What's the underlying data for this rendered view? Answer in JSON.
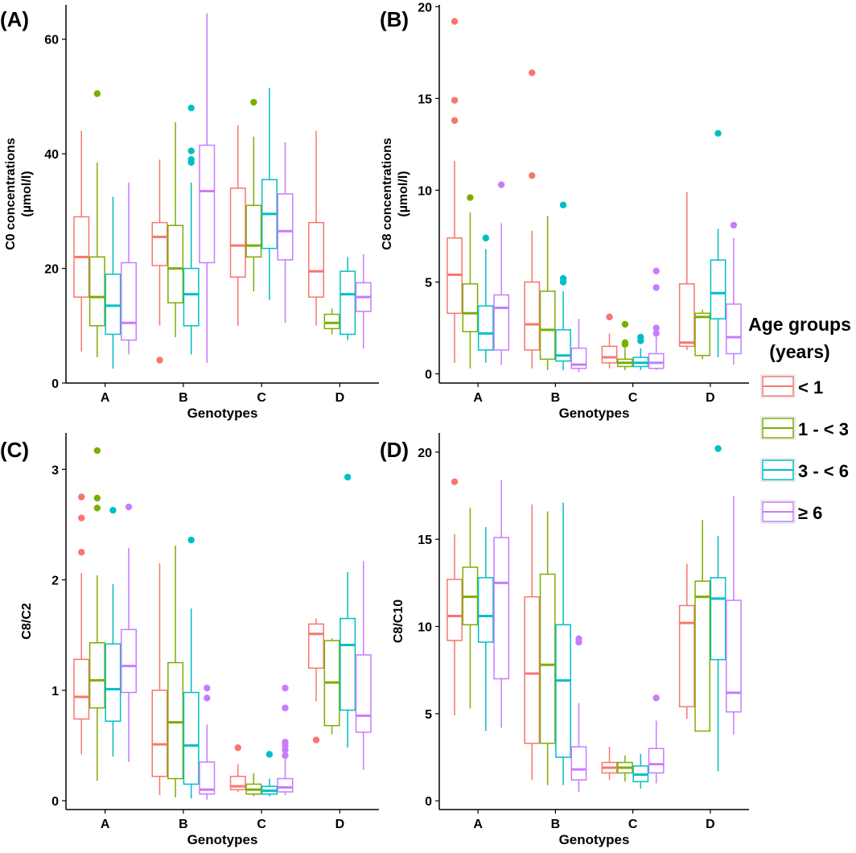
{
  "chart_data": [
    {
      "type": "boxplot",
      "panel_label": "(A)",
      "xlabel": "Genotypes",
      "ylabel_lines": [
        "C0 concentrations",
        "(µmol/l)"
      ],
      "categories": [
        "A",
        "B",
        "C",
        "D"
      ],
      "ylim": [
        0,
        66
      ],
      "yticks": [
        0,
        20,
        40,
        60
      ],
      "series": [
        {
          "name": "< 1",
          "boxes": [
            {
              "min": 5.5,
              "q1": 15,
              "median": 22,
              "q3": 29,
              "max": 44,
              "outliers": []
            },
            {
              "min": 10,
              "q1": 20.5,
              "median": 25.5,
              "q3": 28,
              "max": 39,
              "outliers": [
                4
              ]
            },
            {
              "min": 10,
              "q1": 18.5,
              "median": 24,
              "q3": 34,
              "max": 45,
              "outliers": []
            },
            {
              "min": 10,
              "q1": 15,
              "median": 19.5,
              "q3": 28,
              "max": 44,
              "outliers": []
            }
          ]
        },
        {
          "name": "1 - < 3",
          "boxes": [
            {
              "min": 4.5,
              "q1": 10,
              "median": 15,
              "q3": 22,
              "max": 38.5,
              "outliers": [
                50.5
              ]
            },
            {
              "min": 8,
              "q1": 14,
              "median": 20,
              "q3": 27.5,
              "max": 45.5,
              "outliers": []
            },
            {
              "min": 16,
              "q1": 22,
              "median": 24,
              "q3": 31,
              "max": 43,
              "outliers": [
                49
              ]
            },
            {
              "min": 8.5,
              "q1": 9.5,
              "median": 10.5,
              "q3": 12,
              "max": 13,
              "outliers": []
            }
          ]
        },
        {
          "name": "3 - < 6",
          "boxes": [
            {
              "min": 2.5,
              "q1": 8.5,
              "median": 13.5,
              "q3": 19,
              "max": 32.5,
              "outliers": []
            },
            {
              "min": 5,
              "q1": 10,
              "median": 15.5,
              "q3": 20,
              "max": 35,
              "outliers": [
                38.5,
                39,
                40.5,
                48
              ]
            },
            {
              "min": 14.5,
              "q1": 23.5,
              "median": 29.5,
              "q3": 35.5,
              "max": 51.5,
              "outliers": []
            },
            {
              "min": 7.5,
              "q1": 8.5,
              "median": 15.5,
              "q3": 19.5,
              "max": 22,
              "outliers": []
            }
          ]
        },
        {
          "name": "≥ 6",
          "boxes": [
            {
              "min": 5,
              "q1": 7.5,
              "median": 10.5,
              "q3": 21,
              "max": 35,
              "outliers": []
            },
            {
              "min": 3.5,
              "q1": 21,
              "median": 33.5,
              "q3": 41.5,
              "max": 64.5,
              "outliers": []
            },
            {
              "min": 10.5,
              "q1": 21.5,
              "median": 26.5,
              "q3": 33,
              "max": 42,
              "outliers": []
            },
            {
              "min": 6,
              "q1": 12.5,
              "median": 15,
              "q3": 17.5,
              "max": 22.5,
              "outliers": []
            }
          ]
        }
      ]
    },
    {
      "type": "boxplot",
      "panel_label": "(B)",
      "xlabel": "Genotypes",
      "ylabel_lines": [
        "C8 concentrations",
        "(µmol/l)"
      ],
      "categories": [
        "A",
        "B",
        "C",
        "D"
      ],
      "ylim": [
        -0.5,
        20.1
      ],
      "yticks": [
        0,
        5,
        10,
        15,
        20
      ],
      "series": [
        {
          "name": "< 1",
          "boxes": [
            {
              "min": 0.6,
              "q1": 3.3,
              "median": 5.4,
              "q3": 7.4,
              "max": 11.6,
              "outliers": [
                13.8,
                14.9,
                19.2
              ]
            },
            {
              "min": 0.3,
              "q1": 1.3,
              "median": 2.7,
              "q3": 5.0,
              "max": 7.8,
              "outliers": [
                10.8,
                16.4
              ]
            },
            {
              "min": 0.3,
              "q1": 0.6,
              "median": 0.9,
              "q3": 1.5,
              "max": 2.2,
              "outliers": [
                3.1
              ]
            },
            {
              "min": 1.3,
              "q1": 1.5,
              "median": 1.7,
              "q3": 4.9,
              "max": 9.9,
              "outliers": []
            }
          ]
        },
        {
          "name": "1 - < 3",
          "boxes": [
            {
              "min": 0.3,
              "q1": 2.3,
              "median": 3.3,
              "q3": 4.9,
              "max": 8.8,
              "outliers": [
                9.6
              ]
            },
            {
              "min": 0.2,
              "q1": 0.8,
              "median": 2.4,
              "q3": 4.5,
              "max": 8.6,
              "outliers": []
            },
            {
              "min": 0.2,
              "q1": 0.4,
              "median": 0.6,
              "q3": 0.8,
              "max": 1.4,
              "outliers": [
                1.6,
                1.7,
                2.7
              ]
            },
            {
              "min": 0.8,
              "q1": 1.0,
              "median": 3.1,
              "q3": 3.3,
              "max": 3.5,
              "outliers": []
            }
          ]
        },
        {
          "name": "3 - < 6",
          "boxes": [
            {
              "min": 0.6,
              "q1": 1.3,
              "median": 2.2,
              "q3": 3.7,
              "max": 6.8,
              "outliers": [
                7.4
              ]
            },
            {
              "min": 0.2,
              "q1": 0.7,
              "median": 1.0,
              "q3": 2.4,
              "max": 4.5,
              "outliers": [
                5.0,
                5.2,
                9.2
              ]
            },
            {
              "min": 0.2,
              "q1": 0.4,
              "median": 0.6,
              "q3": 0.9,
              "max": 1.4,
              "outliers": [
                1.8,
                2.0
              ]
            },
            {
              "min": 0.9,
              "q1": 3.0,
              "median": 4.4,
              "q3": 6.2,
              "max": 7.9,
              "outliers": [
                13.1
              ]
            }
          ]
        },
        {
          "name": "≥ 6",
          "boxes": [
            {
              "min": 0.5,
              "q1": 1.3,
              "median": 3.6,
              "q3": 4.3,
              "max": 8.2,
              "outliers": [
                10.3
              ]
            },
            {
              "min": 0.1,
              "q1": 0.3,
              "median": 0.5,
              "q3": 1.4,
              "max": 3.0,
              "outliers": []
            },
            {
              "min": 0.2,
              "q1": 0.3,
              "median": 0.6,
              "q3": 1.1,
              "max": 2.0,
              "outliers": [
                2.2,
                2.5,
                4.7,
                5.6
              ]
            },
            {
              "min": 0.5,
              "q1": 1.1,
              "median": 2.0,
              "q3": 3.8,
              "max": 7.4,
              "outliers": [
                8.1
              ]
            }
          ]
        }
      ]
    },
    {
      "type": "boxplot",
      "panel_label": "(C)",
      "xlabel": "Genotypes",
      "ylabel_lines": [
        "C8/C2"
      ],
      "categories": [
        "A",
        "B",
        "C",
        "D"
      ],
      "ylim": [
        -0.08,
        3.33
      ],
      "yticks": [
        0,
        1,
        2,
        3
      ],
      "series": [
        {
          "name": "< 1",
          "boxes": [
            {
              "min": 0.42,
              "q1": 0.74,
              "median": 0.94,
              "q3": 1.28,
              "max": 2.06,
              "outliers": [
                2.25,
                2.56,
                2.75
              ]
            },
            {
              "min": 0.05,
              "q1": 0.22,
              "median": 0.51,
              "q3": 1.0,
              "max": 2.15,
              "outliers": []
            },
            {
              "min": 0.08,
              "q1": 0.1,
              "median": 0.13,
              "q3": 0.22,
              "max": 0.33,
              "outliers": [
                0.48
              ]
            },
            {
              "min": 0.9,
              "q1": 1.2,
              "median": 1.51,
              "q3": 1.6,
              "max": 1.65,
              "outliers": [
                0.55
              ]
            }
          ]
        },
        {
          "name": "1 - < 3",
          "boxes": [
            {
              "min": 0.18,
              "q1": 0.84,
              "median": 1.09,
              "q3": 1.43,
              "max": 2.04,
              "outliers": [
                2.65,
                2.74,
                3.17
              ]
            },
            {
              "min": 0.03,
              "q1": 0.2,
              "median": 0.71,
              "q3": 1.25,
              "max": 2.31,
              "outliers": []
            },
            {
              "min": 0.04,
              "q1": 0.06,
              "median": 0.1,
              "q3": 0.15,
              "max": 0.25,
              "outliers": []
            },
            {
              "min": 0.6,
              "q1": 0.68,
              "median": 1.07,
              "q3": 1.45,
              "max": 1.47,
              "outliers": []
            }
          ]
        },
        {
          "name": "3 - < 6",
          "boxes": [
            {
              "min": 0.4,
              "q1": 0.72,
              "median": 1.01,
              "q3": 1.42,
              "max": 1.96,
              "outliers": [
                2.63
              ]
            },
            {
              "min": 0.02,
              "q1": 0.15,
              "median": 0.5,
              "q3": 0.98,
              "max": 1.74,
              "outliers": [
                2.36
              ]
            },
            {
              "min": 0.04,
              "q1": 0.06,
              "median": 0.09,
              "q3": 0.13,
              "max": 0.2,
              "outliers": [
                0.42
              ]
            },
            {
              "min": 0.48,
              "q1": 0.82,
              "median": 1.41,
              "q3": 1.65,
              "max": 2.07,
              "outliers": [
                2.93
              ]
            }
          ]
        },
        {
          "name": "≥ 6",
          "boxes": [
            {
              "min": 0.35,
              "q1": 0.98,
              "median": 1.22,
              "q3": 1.55,
              "max": 2.29,
              "outliers": [
                2.66
              ]
            },
            {
              "min": 0.01,
              "q1": 0.06,
              "median": 0.1,
              "q3": 0.35,
              "max": 0.69,
              "outliers": [
                0.93,
                1.02
              ]
            },
            {
              "min": 0.05,
              "q1": 0.08,
              "median": 0.12,
              "q3": 0.2,
              "max": 0.38,
              "outliers": [
                0.41,
                0.46,
                0.5,
                0.53,
                0.84,
                1.02
              ]
            },
            {
              "min": 0.28,
              "q1": 0.62,
              "median": 0.77,
              "q3": 1.32,
              "max": 2.17,
              "outliers": []
            }
          ]
        }
      ]
    },
    {
      "type": "boxplot",
      "panel_label": "(D)",
      "xlabel": "Genotypes",
      "ylabel_lines": [
        "C8/C10"
      ],
      "categories": [
        "A",
        "B",
        "C",
        "D"
      ],
      "ylim": [
        -0.5,
        21.1
      ],
      "yticks": [
        0,
        5,
        10,
        15,
        20
      ],
      "series": [
        {
          "name": "< 1",
          "boxes": [
            {
              "min": 4.9,
              "q1": 9.2,
              "median": 10.6,
              "q3": 12.7,
              "max": 15.3,
              "outliers": [
                18.3
              ]
            },
            {
              "min": 1.2,
              "q1": 3.3,
              "median": 7.3,
              "q3": 11.7,
              "max": 17.0,
              "outliers": []
            },
            {
              "min": 1.2,
              "q1": 1.6,
              "median": 1.9,
              "q3": 2.2,
              "max": 3.1,
              "outliers": []
            },
            {
              "min": 4.7,
              "q1": 5.4,
              "median": 10.2,
              "q3": 11.2,
              "max": 13.6,
              "outliers": []
            }
          ]
        },
        {
          "name": "1 - < 3",
          "boxes": [
            {
              "min": 5.3,
              "q1": 10.1,
              "median": 11.7,
              "q3": 13.4,
              "max": 16.8,
              "outliers": []
            },
            {
              "min": 0.9,
              "q1": 3.3,
              "median": 7.8,
              "q3": 13.0,
              "max": 16.6,
              "outliers": []
            },
            {
              "min": 1.1,
              "q1": 1.6,
              "median": 1.9,
              "q3": 2.2,
              "max": 2.6,
              "outliers": []
            },
            {
              "min": 4.0,
              "q1": 4.0,
              "median": 11.7,
              "q3": 12.6,
              "max": 16.1,
              "outliers": []
            }
          ]
        },
        {
          "name": "3 - < 6",
          "boxes": [
            {
              "min": 4.0,
              "q1": 9.1,
              "median": 10.6,
              "q3": 12.8,
              "max": 15.7,
              "outliers": []
            },
            {
              "min": 0.9,
              "q1": 2.5,
              "median": 6.9,
              "q3": 10.1,
              "max": 17.1,
              "outliers": []
            },
            {
              "min": 0.7,
              "q1": 1.1,
              "median": 1.5,
              "q3": 2.0,
              "max": 2.7,
              "outliers": []
            },
            {
              "min": 1.7,
              "q1": 8.1,
              "median": 11.6,
              "q3": 12.8,
              "max": 15.2,
              "outliers": [
                20.2
              ]
            }
          ]
        },
        {
          "name": "≥ 6",
          "boxes": [
            {
              "min": 4.2,
              "q1": 7.0,
              "median": 12.5,
              "q3": 15.1,
              "max": 18.4,
              "outliers": []
            },
            {
              "min": 0.5,
              "q1": 1.2,
              "median": 1.8,
              "q3": 3.1,
              "max": 5.6,
              "outliers": [
                9.1,
                9.3
              ]
            },
            {
              "min": 1.0,
              "q1": 1.6,
              "median": 2.1,
              "q3": 3.0,
              "max": 4.6,
              "outliers": [
                5.9
              ]
            },
            {
              "min": 3.8,
              "q1": 5.1,
              "median": 6.2,
              "q3": 11.5,
              "max": 17.5,
              "outliers": []
            }
          ]
        }
      ]
    }
  ],
  "legend": {
    "title_lines": [
      "Age groups",
      "(years)"
    ],
    "placement": "right",
    "items": [
      {
        "label": "< 1",
        "color": "#F8766D"
      },
      {
        "label": "1 - < 3",
        "color": "#7CAE00"
      },
      {
        "label": "3 - < 6",
        "color": "#00BFC4"
      },
      {
        "label": "≥ 6",
        "color": "#C77CFF"
      }
    ]
  }
}
